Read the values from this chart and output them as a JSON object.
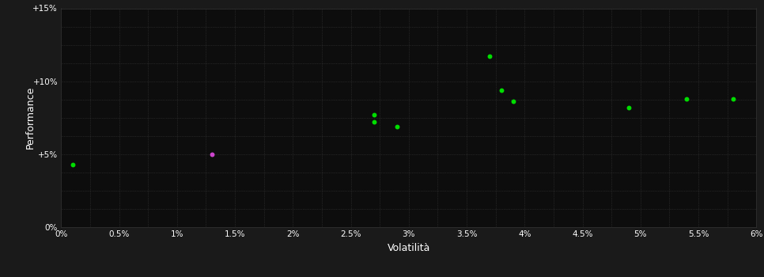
{
  "background_color": "#1a1a1a",
  "plot_bg_color": "#0d0d0d",
  "grid_color": "#3a3a3a",
  "text_color": "#ffffff",
  "xlabel": "Volatilità",
  "ylabel": "Performance",
  "xlim": [
    0,
    0.06
  ],
  "ylim": [
    0,
    0.15
  ],
  "xtick_vals": [
    0.0,
    0.005,
    0.01,
    0.015,
    0.02,
    0.025,
    0.03,
    0.035,
    0.04,
    0.045,
    0.05,
    0.055,
    0.06
  ],
  "xtick_labels": [
    "0%",
    "0.5%",
    "1%",
    "1.5%",
    "2%",
    "2.5%",
    "3%",
    "3.5%",
    "4%",
    "4.5%",
    "5%",
    "5.5%",
    "6%"
  ],
  "ytick_vals": [
    0.0,
    0.05,
    0.1,
    0.15
  ],
  "ytick_labels": [
    "0%",
    "+5%",
    "+10%",
    "+15%"
  ],
  "minor_xtick_step": 0.005,
  "minor_ytick_step": 0.0125,
  "scatter_green": [
    [
      0.001,
      0.043
    ],
    [
      0.027,
      0.072
    ],
    [
      0.029,
      0.069
    ],
    [
      0.027,
      0.077
    ],
    [
      0.037,
      0.117
    ],
    [
      0.038,
      0.094
    ],
    [
      0.039,
      0.086
    ],
    [
      0.049,
      0.082
    ],
    [
      0.054,
      0.088
    ],
    [
      0.058,
      0.088
    ]
  ],
  "scatter_magenta": [
    [
      0.013,
      0.05
    ]
  ],
  "dot_size": 18,
  "green_color": "#00dd00",
  "magenta_color": "#cc44cc"
}
